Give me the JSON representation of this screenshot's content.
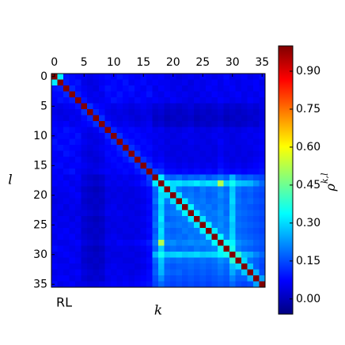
{
  "chart_data": {
    "type": "heatmap",
    "colormap": "jet",
    "annotation": "RL",
    "x_label": "k",
    "y_label": "l",
    "colorbar_label": {
      "base": "ρ",
      "sup": "k,l"
    },
    "xlim": [
      -0.5,
      35.5
    ],
    "ylim": [
      -0.5,
      35.5
    ],
    "xticks": [
      0,
      5,
      10,
      15,
      20,
      25,
      30,
      35
    ],
    "yticks": [
      0,
      5,
      10,
      15,
      20,
      25,
      30,
      35
    ],
    "clim": [
      -0.06,
      1.0
    ],
    "cticks": [
      {
        "value": 0,
        "label": "0.00"
      },
      {
        "value": 0.15,
        "label": "0.15"
      },
      {
        "value": 0.3,
        "label": "0.30"
      },
      {
        "value": 0.45,
        "label": "0.45"
      },
      {
        "value": 0.6,
        "label": "0.60"
      },
      {
        "value": 0.75,
        "label": "0.75"
      },
      {
        "value": 0.9,
        "label": "0.90"
      }
    ],
    "z": [
      [
        1.0,
        0.32,
        0.09,
        0.08,
        0.07,
        0.06,
        0.05,
        0.06,
        0.07,
        0.08,
        0.07,
        0.09,
        0.08,
        0.07,
        0.06,
        0.08,
        0.07,
        0.06,
        0.07,
        0.05,
        0.06,
        0.04,
        0.05,
        0.06,
        0.05,
        0.07,
        0.06,
        0.05,
        0.06,
        0.08,
        0.05,
        0.06,
        0.07,
        0.05,
        0.06,
        0.08
      ],
      [
        0.32,
        1.0,
        0.1,
        0.08,
        0.09,
        0.05,
        0.04,
        0.05,
        0.06,
        0.07,
        0.08,
        0.07,
        0.09,
        0.06,
        0.07,
        0.08,
        0.06,
        0.07,
        0.06,
        0.06,
        0.05,
        0.05,
        0.06,
        0.04,
        0.06,
        0.05,
        0.06,
        0.07,
        0.05,
        0.07,
        0.06,
        0.05,
        0.06,
        0.06,
        0.07,
        0.05
      ],
      [
        0.09,
        0.1,
        1.0,
        0.11,
        0.08,
        0.06,
        0.05,
        0.04,
        0.07,
        0.09,
        0.08,
        0.07,
        0.08,
        0.09,
        0.07,
        0.06,
        0.08,
        0.05,
        0.07,
        0.06,
        0.05,
        0.06,
        0.04,
        0.05,
        0.06,
        0.05,
        0.07,
        0.06,
        0.05,
        0.06,
        0.07,
        0.05,
        0.06,
        0.05,
        0.07,
        0.06
      ],
      [
        0.08,
        0.08,
        0.11,
        1.0,
        0.1,
        0.07,
        0.05,
        0.06,
        0.05,
        0.08,
        0.07,
        0.09,
        0.07,
        0.08,
        0.06,
        0.07,
        0.09,
        0.06,
        0.05,
        0.07,
        0.06,
        0.05,
        0.06,
        0.05,
        0.04,
        0.06,
        0.05,
        0.07,
        0.06,
        0.05,
        0.06,
        0.07,
        0.05,
        0.06,
        0.05,
        0.07
      ],
      [
        0.07,
        0.09,
        0.08,
        0.1,
        1.0,
        0.09,
        0.06,
        0.05,
        0.06,
        0.07,
        0.09,
        0.08,
        0.07,
        0.06,
        0.08,
        0.07,
        0.06,
        0.07,
        0.06,
        0.05,
        0.07,
        0.06,
        0.05,
        0.04,
        0.06,
        0.05,
        0.06,
        0.05,
        0.07,
        0.06,
        0.05,
        0.06,
        0.05,
        0.07,
        0.06,
        0.05
      ],
      [
        0.06,
        0.05,
        0.06,
        0.07,
        0.09,
        1.0,
        0.12,
        0.08,
        0.07,
        0.06,
        0.05,
        0.06,
        0.05,
        0.04,
        0.05,
        0.06,
        0.05,
        0.03,
        0.04,
        0.02,
        0.03,
        0.02,
        0.03,
        0.04,
        0.02,
        0.03,
        0.02,
        0.03,
        0.04,
        0.02,
        0.03,
        0.02,
        0.03,
        0.04,
        0.03,
        0.05
      ],
      [
        0.05,
        0.04,
        0.05,
        0.05,
        0.06,
        0.12,
        1.0,
        0.11,
        0.08,
        0.05,
        0.04,
        0.05,
        0.04,
        0.03,
        0.04,
        0.05,
        0.04,
        0.02,
        0.03,
        0.01,
        0.02,
        0.01,
        0.02,
        0.03,
        0.01,
        0.02,
        0.01,
        0.02,
        0.03,
        0.01,
        0.02,
        0.01,
        0.02,
        0.03,
        0.02,
        0.04
      ],
      [
        0.06,
        0.05,
        0.04,
        0.06,
        0.05,
        0.08,
        0.11,
        1.0,
        0.12,
        0.06,
        0.05,
        0.04,
        0.05,
        0.04,
        0.03,
        0.04,
        0.05,
        0.01,
        0.02,
        0.0,
        0.01,
        0.02,
        0.01,
        0.02,
        0.0,
        0.01,
        0.02,
        0.01,
        0.02,
        0.0,
        0.01,
        0.02,
        0.01,
        0.02,
        0.03,
        0.04
      ],
      [
        0.07,
        0.06,
        0.07,
        0.05,
        0.06,
        0.07,
        0.08,
        0.12,
        1.0,
        0.1,
        0.06,
        0.05,
        0.06,
        0.05,
        0.04,
        0.05,
        0.06,
        0.02,
        0.03,
        0.01,
        0.02,
        0.01,
        0.02,
        0.03,
        0.01,
        0.02,
        0.01,
        0.02,
        0.03,
        0.01,
        0.02,
        0.01,
        0.02,
        0.03,
        0.02,
        0.05
      ],
      [
        0.08,
        0.07,
        0.09,
        0.08,
        0.07,
        0.06,
        0.05,
        0.06,
        0.1,
        1.0,
        0.11,
        0.08,
        0.07,
        0.08,
        0.07,
        0.06,
        0.07,
        0.05,
        0.06,
        0.04,
        0.05,
        0.04,
        0.05,
        0.06,
        0.04,
        0.05,
        0.04,
        0.05,
        0.06,
        0.04,
        0.05,
        0.04,
        0.05,
        0.06,
        0.05,
        0.06
      ],
      [
        0.07,
        0.08,
        0.08,
        0.07,
        0.09,
        0.05,
        0.04,
        0.05,
        0.06,
        0.11,
        1.0,
        0.12,
        0.08,
        0.07,
        0.08,
        0.07,
        0.06,
        0.06,
        0.05,
        0.05,
        0.04,
        0.05,
        0.06,
        0.05,
        0.05,
        0.04,
        0.05,
        0.06,
        0.05,
        0.05,
        0.04,
        0.05,
        0.06,
        0.05,
        0.06,
        0.07
      ],
      [
        0.09,
        0.07,
        0.07,
        0.09,
        0.08,
        0.06,
        0.05,
        0.04,
        0.05,
        0.08,
        0.12,
        1.0,
        0.11,
        0.09,
        0.07,
        0.08,
        0.07,
        0.05,
        0.06,
        0.04,
        0.05,
        0.05,
        0.04,
        0.06,
        0.05,
        0.05,
        0.04,
        0.05,
        0.07,
        0.05,
        0.04,
        0.05,
        0.05,
        0.06,
        0.05,
        0.06
      ],
      [
        0.08,
        0.09,
        0.08,
        0.07,
        0.07,
        0.05,
        0.04,
        0.05,
        0.06,
        0.07,
        0.08,
        0.11,
        1.0,
        0.12,
        0.09,
        0.07,
        0.08,
        0.06,
        0.05,
        0.05,
        0.04,
        0.04,
        0.05,
        0.05,
        0.04,
        0.05,
        0.05,
        0.04,
        0.06,
        0.05,
        0.05,
        0.04,
        0.05,
        0.05,
        0.06,
        0.07
      ],
      [
        0.07,
        0.06,
        0.09,
        0.08,
        0.06,
        0.04,
        0.03,
        0.04,
        0.05,
        0.08,
        0.07,
        0.09,
        0.12,
        1.0,
        0.13,
        0.08,
        0.07,
        0.05,
        0.06,
        0.04,
        0.04,
        0.05,
        0.04,
        0.05,
        0.05,
        0.04,
        0.05,
        0.04,
        0.06,
        0.04,
        0.05,
        0.04,
        0.05,
        0.04,
        0.05,
        0.06
      ],
      [
        0.06,
        0.07,
        0.07,
        0.06,
        0.08,
        0.05,
        0.04,
        0.03,
        0.04,
        0.07,
        0.08,
        0.07,
        0.09,
        0.13,
        1.0,
        0.12,
        0.09,
        0.06,
        0.07,
        0.05,
        0.05,
        0.04,
        0.05,
        0.04,
        0.05,
        0.05,
        0.04,
        0.05,
        0.07,
        0.05,
        0.04,
        0.05,
        0.04,
        0.05,
        0.06,
        0.07
      ],
      [
        0.08,
        0.08,
        0.06,
        0.07,
        0.07,
        0.06,
        0.05,
        0.04,
        0.05,
        0.06,
        0.07,
        0.08,
        0.07,
        0.08,
        0.12,
        1.0,
        0.13,
        0.08,
        0.09,
        0.06,
        0.06,
        0.05,
        0.06,
        0.05,
        0.06,
        0.05,
        0.06,
        0.05,
        0.08,
        0.06,
        0.05,
        0.06,
        0.05,
        0.06,
        0.07,
        0.08
      ],
      [
        0.07,
        0.06,
        0.08,
        0.09,
        0.06,
        0.05,
        0.04,
        0.05,
        0.06,
        0.07,
        0.06,
        0.07,
        0.08,
        0.07,
        0.09,
        0.13,
        1.0,
        0.14,
        0.12,
        0.08,
        0.08,
        0.07,
        0.08,
        0.07,
        0.08,
        0.07,
        0.08,
        0.07,
        0.1,
        0.08,
        0.07,
        0.08,
        0.07,
        0.08,
        0.08,
        0.09
      ],
      [
        0.06,
        0.07,
        0.05,
        0.06,
        0.07,
        0.03,
        0.02,
        0.01,
        0.02,
        0.05,
        0.06,
        0.05,
        0.06,
        0.05,
        0.06,
        0.08,
        0.14,
        1.0,
        0.32,
        0.18,
        0.17,
        0.19,
        0.16,
        0.18,
        0.17,
        0.19,
        0.16,
        0.18,
        0.2,
        0.17,
        0.26,
        0.18,
        0.16,
        0.17,
        0.15,
        0.14
      ],
      [
        0.07,
        0.06,
        0.07,
        0.05,
        0.06,
        0.04,
        0.03,
        0.02,
        0.03,
        0.06,
        0.05,
        0.06,
        0.05,
        0.06,
        0.07,
        0.09,
        0.12,
        0.32,
        1.0,
        0.33,
        0.3,
        0.31,
        0.29,
        0.3,
        0.32,
        0.29,
        0.31,
        0.3,
        0.52,
        0.29,
        0.35,
        0.28,
        0.27,
        0.26,
        0.22,
        0.18
      ],
      [
        0.05,
        0.06,
        0.06,
        0.07,
        0.05,
        0.02,
        0.01,
        0.0,
        0.01,
        0.04,
        0.05,
        0.04,
        0.05,
        0.04,
        0.05,
        0.06,
        0.08,
        0.18,
        0.33,
        1.0,
        0.3,
        0.2,
        0.18,
        0.19,
        0.17,
        0.2,
        0.18,
        0.19,
        0.21,
        0.18,
        0.28,
        0.19,
        0.17,
        0.18,
        0.16,
        0.15
      ],
      [
        0.06,
        0.05,
        0.05,
        0.06,
        0.07,
        0.03,
        0.02,
        0.01,
        0.02,
        0.05,
        0.04,
        0.05,
        0.04,
        0.04,
        0.05,
        0.06,
        0.08,
        0.17,
        0.3,
        0.3,
        1.0,
        0.31,
        0.19,
        0.2,
        0.18,
        0.19,
        0.17,
        0.18,
        0.22,
        0.19,
        0.29,
        0.18,
        0.16,
        0.17,
        0.15,
        0.14
      ],
      [
        0.04,
        0.05,
        0.06,
        0.05,
        0.06,
        0.02,
        0.01,
        0.02,
        0.01,
        0.04,
        0.05,
        0.05,
        0.04,
        0.05,
        0.04,
        0.05,
        0.07,
        0.19,
        0.31,
        0.2,
        0.31,
        1.0,
        0.32,
        0.21,
        0.19,
        0.2,
        0.18,
        0.19,
        0.2,
        0.18,
        0.3,
        0.19,
        0.17,
        0.18,
        0.16,
        0.15
      ],
      [
        0.05,
        0.06,
        0.04,
        0.06,
        0.05,
        0.03,
        0.02,
        0.01,
        0.02,
        0.05,
        0.06,
        0.04,
        0.05,
        0.04,
        0.05,
        0.06,
        0.08,
        0.16,
        0.29,
        0.18,
        0.19,
        0.32,
        1.0,
        0.33,
        0.2,
        0.19,
        0.2,
        0.18,
        0.21,
        0.19,
        0.28,
        0.18,
        0.17,
        0.16,
        0.15,
        0.14
      ],
      [
        0.06,
        0.04,
        0.05,
        0.05,
        0.04,
        0.04,
        0.03,
        0.02,
        0.03,
        0.06,
        0.05,
        0.06,
        0.05,
        0.05,
        0.04,
        0.05,
        0.07,
        0.18,
        0.3,
        0.19,
        0.2,
        0.21,
        0.33,
        1.0,
        0.32,
        0.21,
        0.19,
        0.2,
        0.22,
        0.18,
        0.29,
        0.19,
        0.18,
        0.17,
        0.16,
        0.15
      ],
      [
        0.05,
        0.06,
        0.06,
        0.04,
        0.06,
        0.02,
        0.01,
        0.0,
        0.01,
        0.04,
        0.05,
        0.05,
        0.04,
        0.05,
        0.05,
        0.06,
        0.08,
        0.17,
        0.32,
        0.17,
        0.18,
        0.19,
        0.2,
        0.32,
        1.0,
        0.31,
        0.2,
        0.19,
        0.21,
        0.2,
        0.3,
        0.18,
        0.17,
        0.16,
        0.15,
        0.14
      ],
      [
        0.07,
        0.05,
        0.05,
        0.06,
        0.05,
        0.03,
        0.02,
        0.01,
        0.02,
        0.05,
        0.04,
        0.05,
        0.05,
        0.04,
        0.05,
        0.05,
        0.07,
        0.19,
        0.29,
        0.2,
        0.19,
        0.2,
        0.19,
        0.21,
        0.31,
        1.0,
        0.33,
        0.2,
        0.22,
        0.19,
        0.28,
        0.19,
        0.18,
        0.17,
        0.16,
        0.15
      ],
      [
        0.06,
        0.06,
        0.07,
        0.05,
        0.06,
        0.02,
        0.01,
        0.02,
        0.01,
        0.04,
        0.05,
        0.04,
        0.05,
        0.05,
        0.04,
        0.06,
        0.08,
        0.16,
        0.31,
        0.18,
        0.17,
        0.18,
        0.2,
        0.19,
        0.2,
        0.33,
        1.0,
        0.32,
        0.21,
        0.2,
        0.29,
        0.18,
        0.17,
        0.16,
        0.15,
        0.14
      ],
      [
        0.05,
        0.07,
        0.06,
        0.07,
        0.05,
        0.03,
        0.02,
        0.01,
        0.02,
        0.05,
        0.06,
        0.05,
        0.04,
        0.04,
        0.05,
        0.05,
        0.07,
        0.18,
        0.3,
        0.19,
        0.18,
        0.19,
        0.18,
        0.2,
        0.19,
        0.2,
        0.32,
        1.0,
        0.34,
        0.21,
        0.3,
        0.19,
        0.18,
        0.17,
        0.16,
        0.15
      ],
      [
        0.06,
        0.05,
        0.05,
        0.06,
        0.07,
        0.04,
        0.03,
        0.02,
        0.03,
        0.06,
        0.05,
        0.07,
        0.06,
        0.06,
        0.07,
        0.08,
        0.1,
        0.2,
        0.52,
        0.21,
        0.22,
        0.2,
        0.21,
        0.22,
        0.21,
        0.22,
        0.21,
        0.34,
        1.0,
        0.35,
        0.33,
        0.22,
        0.2,
        0.19,
        0.17,
        0.16
      ],
      [
        0.08,
        0.07,
        0.06,
        0.05,
        0.06,
        0.02,
        0.01,
        0.0,
        0.01,
        0.04,
        0.05,
        0.05,
        0.05,
        0.04,
        0.05,
        0.06,
        0.08,
        0.17,
        0.29,
        0.18,
        0.19,
        0.18,
        0.19,
        0.18,
        0.2,
        0.19,
        0.2,
        0.21,
        0.35,
        1.0,
        0.36,
        0.2,
        0.18,
        0.17,
        0.16,
        0.15
      ],
      [
        0.05,
        0.06,
        0.07,
        0.06,
        0.05,
        0.03,
        0.02,
        0.01,
        0.02,
        0.05,
        0.04,
        0.04,
        0.05,
        0.05,
        0.04,
        0.05,
        0.07,
        0.26,
        0.35,
        0.28,
        0.29,
        0.3,
        0.28,
        0.29,
        0.3,
        0.28,
        0.29,
        0.3,
        0.33,
        0.36,
        1.0,
        0.38,
        0.27,
        0.25,
        0.21,
        0.18
      ],
      [
        0.06,
        0.05,
        0.05,
        0.07,
        0.06,
        0.02,
        0.01,
        0.02,
        0.01,
        0.04,
        0.05,
        0.05,
        0.04,
        0.04,
        0.05,
        0.06,
        0.08,
        0.18,
        0.28,
        0.19,
        0.18,
        0.19,
        0.18,
        0.19,
        0.18,
        0.19,
        0.18,
        0.19,
        0.22,
        0.2,
        0.38,
        1.0,
        0.3,
        0.19,
        0.17,
        0.15
      ],
      [
        0.07,
        0.06,
        0.06,
        0.05,
        0.05,
        0.03,
        0.02,
        0.01,
        0.02,
        0.05,
        0.06,
        0.05,
        0.05,
        0.05,
        0.04,
        0.05,
        0.07,
        0.16,
        0.27,
        0.17,
        0.16,
        0.17,
        0.17,
        0.18,
        0.17,
        0.18,
        0.17,
        0.18,
        0.2,
        0.18,
        0.27,
        0.3,
        1.0,
        0.28,
        0.17,
        0.14
      ],
      [
        0.05,
        0.06,
        0.05,
        0.06,
        0.07,
        0.04,
        0.03,
        0.02,
        0.03,
        0.06,
        0.05,
        0.06,
        0.05,
        0.04,
        0.05,
        0.06,
        0.08,
        0.17,
        0.26,
        0.18,
        0.17,
        0.18,
        0.16,
        0.17,
        0.16,
        0.17,
        0.16,
        0.17,
        0.19,
        0.17,
        0.25,
        0.19,
        0.28,
        1.0,
        0.26,
        0.15
      ],
      [
        0.06,
        0.07,
        0.07,
        0.05,
        0.06,
        0.03,
        0.02,
        0.03,
        0.02,
        0.05,
        0.06,
        0.05,
        0.06,
        0.05,
        0.06,
        0.07,
        0.08,
        0.15,
        0.22,
        0.16,
        0.15,
        0.16,
        0.15,
        0.16,
        0.15,
        0.16,
        0.15,
        0.16,
        0.17,
        0.16,
        0.21,
        0.17,
        0.17,
        0.26,
        1.0,
        0.24
      ],
      [
        0.08,
        0.05,
        0.06,
        0.07,
        0.05,
        0.05,
        0.04,
        0.04,
        0.05,
        0.06,
        0.07,
        0.06,
        0.07,
        0.06,
        0.07,
        0.08,
        0.09,
        0.14,
        0.18,
        0.15,
        0.14,
        0.15,
        0.14,
        0.15,
        0.14,
        0.15,
        0.14,
        0.15,
        0.16,
        0.15,
        0.18,
        0.15,
        0.14,
        0.15,
        0.24,
        1.0
      ]
    ]
  }
}
